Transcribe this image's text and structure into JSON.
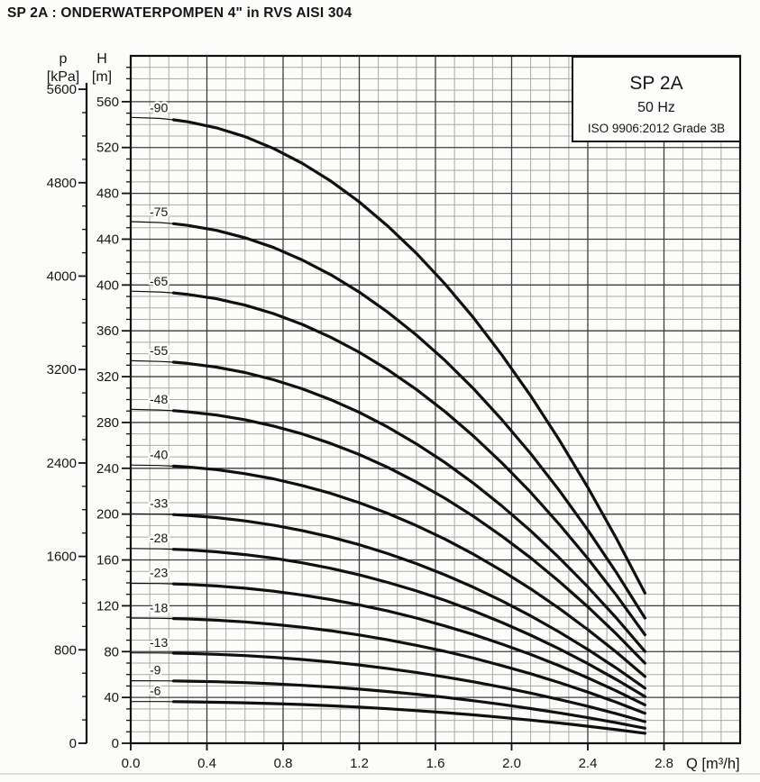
{
  "page": {
    "title": "SP 2A : ONDERWATERPOMPEN 4\" in RVS AISI 304"
  },
  "legend": {
    "model": "SP 2A",
    "frequency": "50 Hz",
    "standard": "ISO 9906:2012 Grade 3B"
  },
  "axes": {
    "pressure": {
      "name": "p",
      "unit": "[kPa]",
      "ticks": [
        5600,
        4800,
        4000,
        3200,
        2400,
        1600,
        800,
        0
      ]
    },
    "head": {
      "name": "H",
      "unit": "[m]",
      "ticks": [
        560,
        520,
        480,
        440,
        400,
        360,
        320,
        280,
        240,
        200,
        160,
        120,
        80,
        40,
        0
      ]
    },
    "flow": {
      "label": "Q [m³/h]",
      "ticks": [
        "0.0",
        "0.4",
        "0.8",
        "1.2",
        "1.6",
        "2.0",
        "2.4",
        "2.8"
      ]
    }
  },
  "chart_data": {
    "type": "line",
    "title": "SP 2A 50 Hz submersible pump curves",
    "xlabel": "Q [m³/h]",
    "ylabel": "H [m]",
    "y2label": "p [kPa]",
    "xlim": [
      0,
      3.2
    ],
    "ylim": [
      0,
      600
    ],
    "x_major_step": 0.4,
    "x_minor_step": 0.1,
    "y_major_step": 40,
    "y_minor_step": 10,
    "grid": true,
    "legend_position": "top-right",
    "q": [
      0,
      0.15,
      0.225,
      0.3,
      0.45,
      0.6,
      0.75,
      0.9,
      1.05,
      1.2,
      1.35,
      1.5,
      1.65,
      1.8,
      1.95,
      2.1,
      2.25,
      2.4,
      2.55,
      2.7
    ],
    "series": [
      {
        "name": "-90",
        "stages": 90,
        "H": [
          546.3,
          545.4,
          544.2,
          542.4,
          537.2,
          529.5,
          519.2,
          506.3,
          490.8,
          472.5,
          451.4,
          427.6,
          400.9,
          371.3,
          338.7,
          303.3,
          264.8,
          223.3,
          178.8,
          131.1
        ]
      },
      {
        "name": "-75",
        "stages": 75,
        "H": [
          455.3,
          454.5,
          453.5,
          452.0,
          447.7,
          441.2,
          432.7,
          421.9,
          409.0,
          393.8,
          376.2,
          356.3,
          334.1,
          309.4,
          282.2,
          252.8,
          220.7,
          186.1,
          149.0,
          109.3
        ]
      },
      {
        "name": "-65",
        "stages": 65,
        "H": [
          394.6,
          393.9,
          393.1,
          391.8,
          388.0,
          382.4,
          375.0,
          365.7,
          354.4,
          341.3,
          326.0,
          308.8,
          289.5,
          268.1,
          244.6,
          219.1,
          191.2,
          161.3,
          129.2,
          94.7
        ]
      },
      {
        "name": "-55",
        "stages": 55,
        "H": [
          333.9,
          333.3,
          332.6,
          331.5,
          328.3,
          323.6,
          317.3,
          309.4,
          299.9,
          288.8,
          275.9,
          261.3,
          245.0,
          226.9,
          207.0,
          185.4,
          161.8,
          136.5,
          109.3,
          80.1
        ]
      },
      {
        "name": "-48",
        "stages": 48,
        "H": [
          291.4,
          290.9,
          290.3,
          289.3,
          286.5,
          282.4,
          276.9,
          270.0,
          261.7,
          252.0,
          240.8,
          228.0,
          213.8,
          198.0,
          180.6,
          161.8,
          141.2,
          119.1,
          95.4,
          69.9
        ]
      },
      {
        "name": "-40",
        "stages": 40,
        "H": [
          242.8,
          242.4,
          241.9,
          241.1,
          238.8,
          235.3,
          230.8,
          225.0,
          218.1,
          210.0,
          200.6,
          190.0,
          178.2,
          165.0,
          150.5,
          134.8,
          117.7,
          99.2,
          79.5,
          58.3
        ]
      },
      {
        "name": "-33",
        "stages": 33,
        "H": [
          200.3,
          200.0,
          199.6,
          198.9,
          197.0,
          194.1,
          190.4,
          185.7,
          180.0,
          173.3,
          165.5,
          156.8,
          147.0,
          136.1,
          124.2,
          111.2,
          97.1,
          81.9,
          65.6,
          48.1
        ]
      },
      {
        "name": "-28",
        "stages": 28,
        "H": [
          170.0,
          169.7,
          169.3,
          168.8,
          167.1,
          164.7,
          161.5,
          157.5,
          152.7,
          147.0,
          140.4,
          133.0,
          124.7,
          115.5,
          105.4,
          94.4,
          82.4,
          69.5,
          55.6,
          40.8
        ]
      },
      {
        "name": "-23",
        "stages": 23,
        "H": [
          139.6,
          139.4,
          139.1,
          138.6,
          137.3,
          135.3,
          132.7,
          129.4,
          125.4,
          120.8,
          115.4,
          109.3,
          102.4,
          94.9,
          86.5,
          77.5,
          67.7,
          57.1,
          45.7,
          33.5
        ]
      },
      {
        "name": "-18",
        "stages": 18,
        "H": [
          109.3,
          109.1,
          108.8,
          108.5,
          107.4,
          105.9,
          103.8,
          101.3,
          98.2,
          94.5,
          90.3,
          85.5,
          80.2,
          74.3,
          67.7,
          60.7,
          53.0,
          44.7,
          35.8,
          26.2
        ]
      },
      {
        "name": "-13",
        "stages": 13,
        "H": [
          78.9,
          78.8,
          78.6,
          78.4,
          77.6,
          76.5,
          75.0,
          73.1,
          70.9,
          68.3,
          65.2,
          61.8,
          57.9,
          53.6,
          48.9,
          43.8,
          38.2,
          32.3,
          25.8,
          18.9
        ]
      },
      {
        "name": "-9",
        "stages": 9,
        "H": [
          54.6,
          54.5,
          54.4,
          54.2,
          53.7,
          52.9,
          51.9,
          50.6,
          49.1,
          47.3,
          45.1,
          42.8,
          40.1,
          37.1,
          33.9,
          30.3,
          26.5,
          22.3,
          17.9,
          13.1
        ]
      },
      {
        "name": "-6",
        "stages": 6,
        "H": [
          36.4,
          36.4,
          36.3,
          36.2,
          35.8,
          35.3,
          34.6,
          33.8,
          32.7,
          31.5,
          30.1,
          28.5,
          26.7,
          24.8,
          22.6,
          20.2,
          17.7,
          14.9,
          11.9,
          8.7
        ]
      }
    ]
  }
}
